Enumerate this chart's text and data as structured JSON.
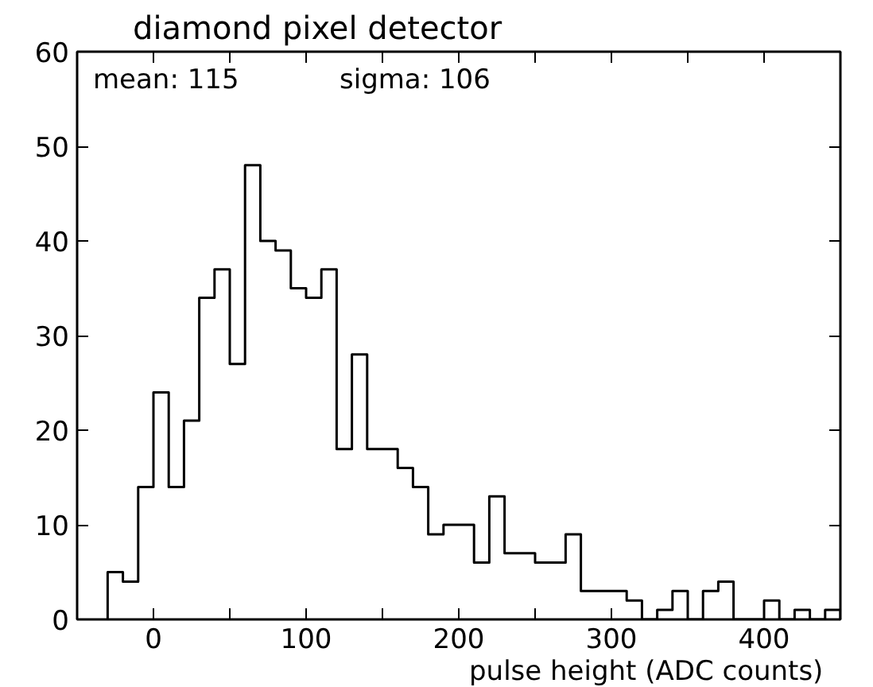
{
  "chart_data": {
    "type": "histogram",
    "title": "diamond pixel detector",
    "xlabel": "pulse height   (ADC counts)",
    "annotations": [
      "mean:  115",
      "sigma:  106"
    ],
    "bins": [
      -30,
      -20,
      -10,
      0,
      10,
      20,
      30,
      40,
      50,
      60,
      70,
      80,
      90,
      100,
      110,
      120,
      130,
      140,
      150,
      160,
      170,
      180,
      190,
      200,
      210,
      220,
      230,
      240,
      250,
      260,
      270,
      280,
      290,
      300,
      310,
      320,
      330,
      340,
      350,
      360,
      370,
      380,
      390,
      400,
      410,
      420,
      430,
      440,
      450
    ],
    "values": [
      5,
      4,
      14,
      24,
      14,
      21,
      34,
      37,
      27,
      48,
      40,
      39,
      35,
      34,
      37,
      18,
      28,
      18,
      18,
      16,
      14,
      9,
      10,
      10,
      6,
      13,
      7,
      7,
      6,
      6,
      9,
      3,
      3,
      3,
      2,
      0,
      1,
      3,
      0,
      3,
      4,
      0,
      0,
      2,
      0,
      1,
      0,
      1
    ],
    "color": "#000000",
    "xlim": [
      -50,
      450
    ],
    "ylim": [
      0,
      60
    ],
    "xticks": [
      0,
      {
        "value": 50,
        "label": null
      },
      100,
      {
        "value": 150,
        "label": null
      },
      200,
      {
        "value": 250,
        "label": null
      },
      300,
      {
        "value": 350,
        "label": null
      },
      400
    ],
    "yticks": [
      0,
      10,
      20,
      30,
      40,
      50,
      60
    ],
    "grid": false
  }
}
